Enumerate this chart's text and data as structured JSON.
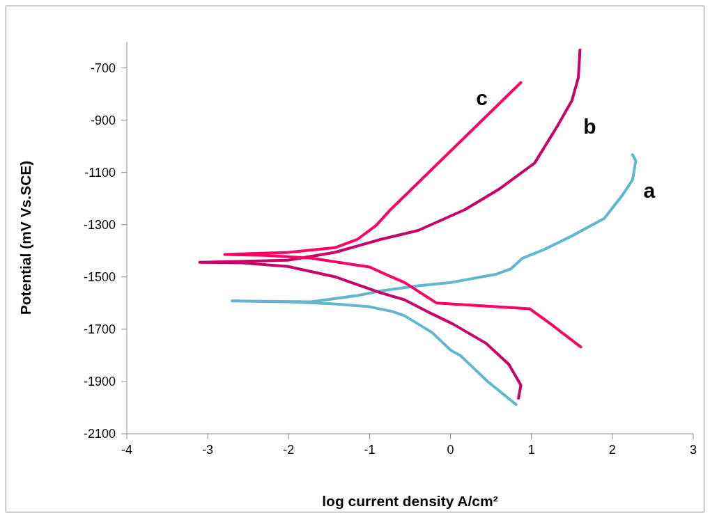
{
  "chart_data": {
    "type": "line",
    "xlabel": "log current density A/cm²",
    "ylabel": "Potential (mV Vs.SCE)",
    "xlim": [
      -4,
      3
    ],
    "xticks": [
      -4,
      -3,
      -2,
      -1,
      0,
      1,
      2,
      3
    ],
    "ylim": [
      -2100,
      -600
    ],
    "yticks": [
      -2100,
      -1900,
      -1700,
      -1500,
      -1300,
      -1100,
      -900,
      -700
    ],
    "grid": false,
    "legend": false,
    "marker": "none",
    "line_style": "solid",
    "series": [
      {
        "name": "a",
        "color": "#62b6cd",
        "x": [
          0.81,
          0.46,
          0.12,
          0.005,
          -0.23,
          -0.57,
          -0.72,
          -1.0,
          -1.43,
          -2.01,
          -2.7,
          -1.72,
          -1.15,
          -0.86,
          -0.4,
          0.005,
          0.57,
          0.75,
          0.89,
          1.15,
          1.5,
          1.9,
          2.12,
          2.25,
          2.29,
          2.25
        ],
        "values": [
          -1988,
          -1900,
          -1800,
          -1781,
          -1712,
          -1648,
          -1632,
          -1614,
          -1603,
          -1595,
          -1592,
          -1595,
          -1571,
          -1553,
          -1534,
          -1521,
          -1489,
          -1468,
          -1428,
          -1396,
          -1343,
          -1276,
          -1189,
          -1128,
          -1056,
          -1032
        ]
      },
      {
        "name": "b",
        "color": "#c8006a",
        "x": [
          0.84,
          0.87,
          0.72,
          0.44,
          0.03,
          -0.29,
          -0.57,
          -0.86,
          -1.43,
          -2.01,
          -2.58,
          -3.1,
          -2.01,
          -1.43,
          -0.86,
          -0.4,
          0.18,
          0.61,
          1.04,
          1.32,
          1.5,
          1.58,
          1.6
        ],
        "values": [
          -1964,
          -1914,
          -1834,
          -1754,
          -1680,
          -1632,
          -1587,
          -1561,
          -1499,
          -1460,
          -1446,
          -1444,
          -1436,
          -1406,
          -1356,
          -1322,
          -1242,
          -1162,
          -1064,
          -923,
          -825,
          -737,
          -631
        ]
      },
      {
        "name": "c",
        "color": "#ff0066",
        "x": [
          1.61,
          1.26,
          0.98,
          -0.17,
          -0.57,
          -0.77,
          -1.0,
          -1.72,
          -2.29,
          -2.79,
          -2.01,
          -1.43,
          -1.15,
          -0.92,
          -0.74,
          0.87
        ],
        "values": [
          -1768,
          -1685,
          -1622,
          -1600,
          -1521,
          -1494,
          -1462,
          -1428,
          -1417,
          -1414,
          -1406,
          -1388,
          -1356,
          -1303,
          -1242,
          -756
        ]
      }
    ]
  }
}
